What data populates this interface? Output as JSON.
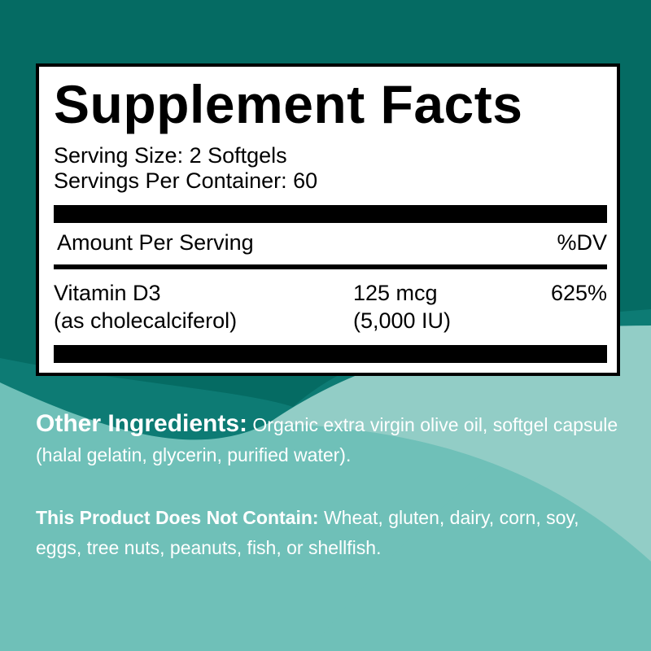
{
  "colors": {
    "dark_teal": "#056b63",
    "mid_teal": "#0d7b74",
    "light_teal": "#92cdc6",
    "base_teal": "#6fc0b8"
  },
  "facts": {
    "title": "Supplement Facts",
    "serving_size": "Serving Size: 2 Softgels",
    "servings_per_container": "Servings Per Container: 60",
    "amount_header": "Amount Per Serving",
    "dv_header": "%DV",
    "ingredient": {
      "name": "Vitamin D3",
      "source": "(as cholecalciferol)",
      "amount": "125 mcg",
      "amount_iu": "(5,000 IU)",
      "dv": "625%"
    }
  },
  "other_ingredients": {
    "label": "Other Ingredients:",
    "text": " Organic extra virgin olive oil, softgel capsule (halal gelatin, glycerin, purified water)."
  },
  "does_not_contain": {
    "label": "This Product Does Not Contain:",
    "text": " Wheat, gluten, dairy, corn, soy, eggs, tree nuts, peanuts, fish, or shellfish."
  }
}
